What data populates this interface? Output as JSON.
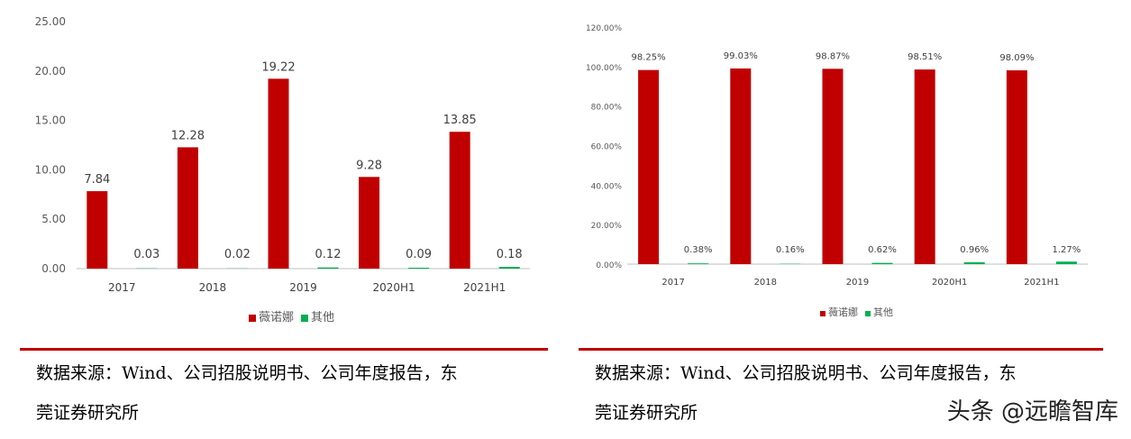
{
  "chart_data": [
    {
      "type": "bar",
      "categories": [
        "2017",
        "2018",
        "2019",
        "2020H1",
        "2021H1"
      ],
      "series": [
        {
          "name": "薇诺娜",
          "values": [
            7.84,
            12.28,
            19.22,
            9.28,
            13.85
          ],
          "color": "#c00000"
        },
        {
          "name": "其他",
          "values": [
            0.03,
            0.02,
            0.12,
            0.09,
            0.18
          ],
          "color": "#00b050"
        }
      ],
      "data_labels": [
        [
          "7.84",
          "12.28",
          "19.22",
          "9.28",
          "13.85"
        ],
        [
          "0.03",
          "0.02",
          "0.12",
          "0.09",
          "0.18"
        ]
      ],
      "yticks": [
        "0.00",
        "5.00",
        "10.00",
        "15.00",
        "20.00",
        "25.00"
      ],
      "ylim": [
        0,
        25
      ],
      "grid": false,
      "legend": "bottom"
    },
    {
      "type": "bar",
      "categories": [
        "2017",
        "2018",
        "2019",
        "2020H1",
        "2021H1"
      ],
      "series": [
        {
          "name": "薇诺娜",
          "values": [
            98.25,
            99.03,
            98.87,
            98.51,
            98.09
          ],
          "color": "#c00000"
        },
        {
          "name": "其他",
          "values": [
            0.38,
            0.16,
            0.62,
            0.96,
            1.27
          ],
          "color": "#00b050"
        }
      ],
      "data_labels": [
        [
          "98.25%",
          "99.03%",
          "98.87%",
          "98.51%",
          "98.09%"
        ],
        [
          "0.38%",
          "0.16%",
          "0.62%",
          "0.96%",
          "1.27%"
        ]
      ],
      "yticks": [
        "0.00%",
        "20.00%",
        "40.00%",
        "60.00%",
        "80.00%",
        "100.00%",
        "120.00%"
      ],
      "ylim": [
        0,
        120
      ],
      "grid": false,
      "legend": "bottom"
    }
  ],
  "source_left": {
    "line1": "数据来源：Wind、公司招股说明书、公司年度报告，东",
    "line2": "莞证券研究所"
  },
  "source_right": {
    "line1": "数据来源：Wind、公司招股说明书、公司年度报告，东",
    "line2": "莞证券研究所"
  },
  "watermark": "头条 @远瞻智库",
  "colors": {
    "accent": "#c00000",
    "secondary": "#00b050",
    "rule": "#c00000"
  }
}
